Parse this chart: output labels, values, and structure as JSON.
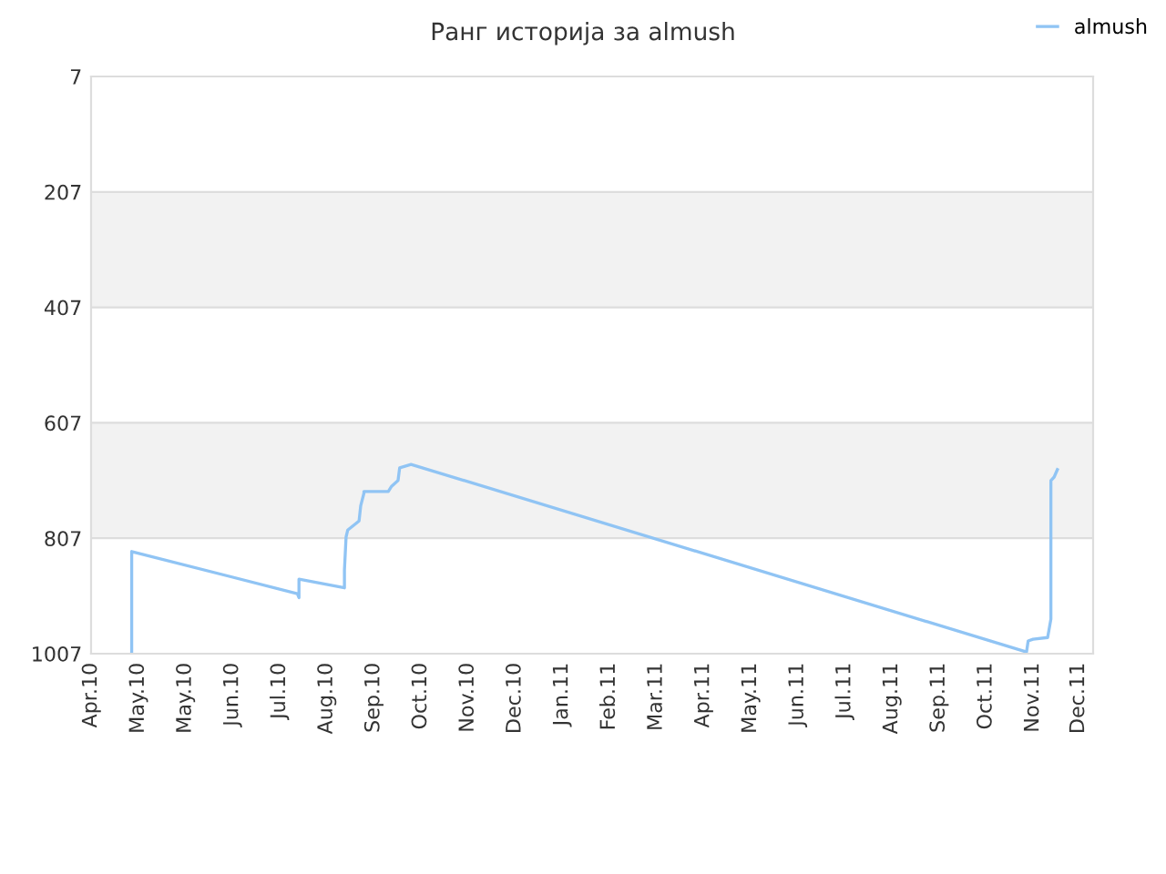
{
  "chart_data": {
    "type": "line",
    "title": "Ранг историја за almush",
    "xlim": [
      "2010-04-02",
      "2011-12-10"
    ],
    "xticks": [
      {
        "value": "2010-04-02",
        "label": "Apr.10"
      },
      {
        "value": "2010-05-01",
        "label": "May.10"
      },
      {
        "value": "2010-05-30",
        "label": "May.10"
      },
      {
        "value": "2010-06-28",
        "label": "Jun.10"
      },
      {
        "value": "2010-07-27",
        "label": "Jul.10"
      },
      {
        "value": "2010-08-25",
        "label": "Aug.10"
      },
      {
        "value": "2010-09-23",
        "label": "Sep.10"
      },
      {
        "value": "2010-10-22",
        "label": "Oct.10"
      },
      {
        "value": "2010-11-20",
        "label": "Nov.10"
      },
      {
        "value": "2010-12-19",
        "label": "Dec.10"
      },
      {
        "value": "2011-01-17",
        "label": "Jan.11"
      },
      {
        "value": "2011-02-15",
        "label": "Feb.11"
      },
      {
        "value": "2011-03-16",
        "label": "Mar.11"
      },
      {
        "value": "2011-04-14",
        "label": "Apr.11"
      },
      {
        "value": "2011-05-13",
        "label": "May.11"
      },
      {
        "value": "2011-06-11",
        "label": "Jun.11"
      },
      {
        "value": "2011-07-10",
        "label": "Jul.11"
      },
      {
        "value": "2011-08-08",
        "label": "Aug.11"
      },
      {
        "value": "2011-09-06",
        "label": "Sep.11"
      },
      {
        "value": "2011-10-05",
        "label": "Oct.11"
      },
      {
        "value": "2011-11-03",
        "label": "Nov.11"
      },
      {
        "value": "2011-12-01",
        "label": "Dec.11"
      }
    ],
    "ylim": [
      1007,
      7
    ],
    "yticks": [
      7,
      207,
      407,
      607,
      807,
      1007
    ],
    "grid": "y",
    "legend": "top right",
    "marker": "none",
    "line_style": "solid",
    "bands": [
      {
        "axis": "y",
        "from": 207,
        "to": 407,
        "color": "#f2f2f2"
      },
      {
        "axis": "y",
        "from": 607,
        "to": 807,
        "color": "#f2f2f2"
      }
    ],
    "series": [
      {
        "name": "almush",
        "color": "#90c4f4",
        "x": [
          "2010-04-27",
          "2010-04-27",
          "2010-08-07",
          "2010-08-08",
          "2010-08-08",
          "2010-09-05",
          "2010-09-05",
          "2010-09-06",
          "2010-09-07",
          "2010-09-14",
          "2010-09-15",
          "2010-09-17",
          "2010-09-17",
          "2010-10-02",
          "2010-10-04",
          "2010-10-08",
          "2010-10-09",
          "2010-10-16",
          "2011-10-30",
          "2011-10-31",
          "2011-11-03",
          "2011-11-12",
          "2011-11-14",
          "2011-11-14",
          "2011-11-16",
          "2011-11-18"
        ],
        "values": [
          1007,
          830,
          903,
          910,
          878,
          893,
          862,
          805,
          793,
          777,
          751,
          729,
          726,
          726,
          717,
          707,
          685,
          679,
          1004,
          985,
          982,
          979,
          947,
          707,
          701,
          688
        ]
      }
    ]
  }
}
